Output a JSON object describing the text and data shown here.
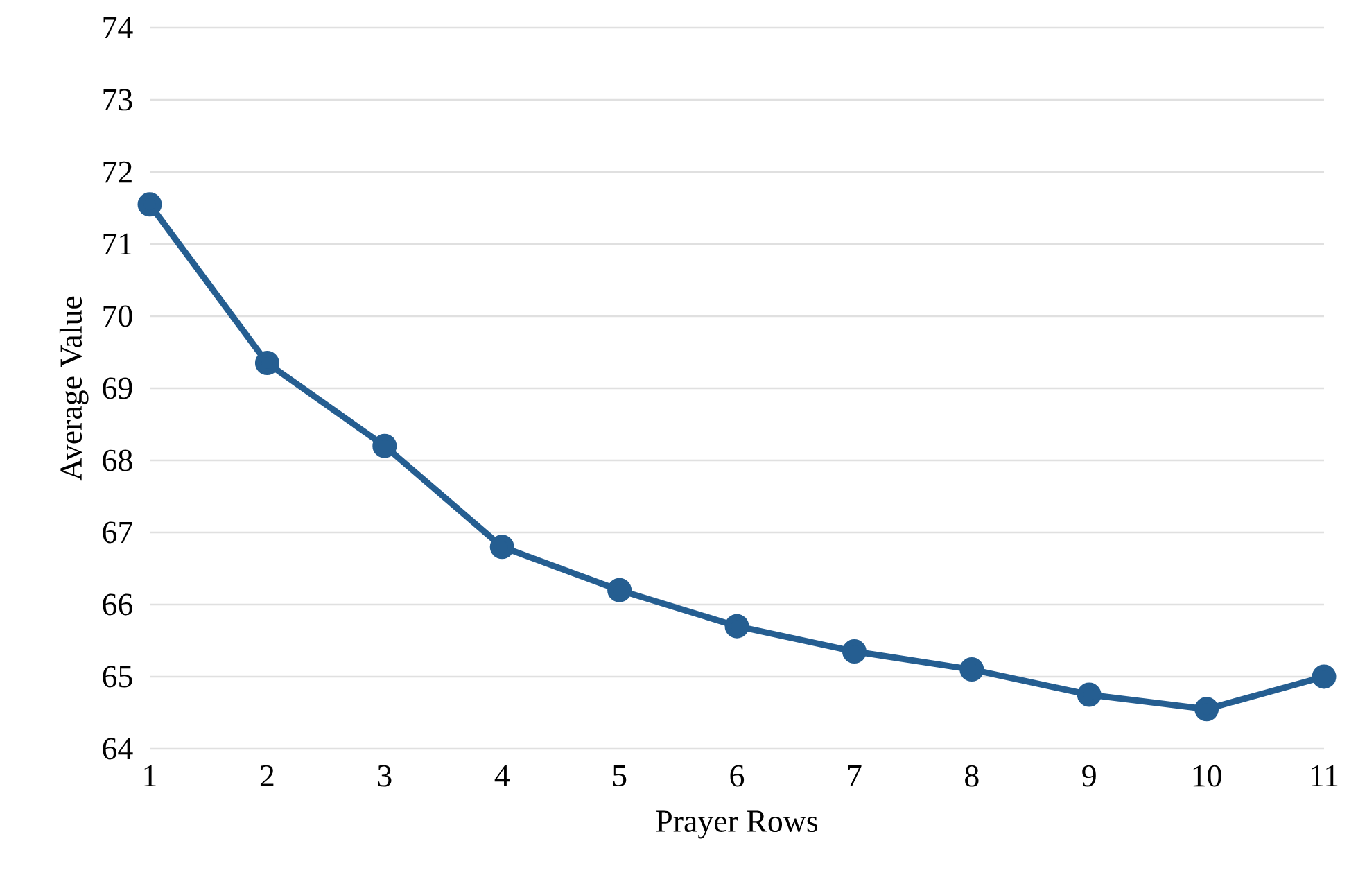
{
  "chart_data": {
    "type": "line",
    "xlabel": "Prayer Rows",
    "ylabel": "Average Value",
    "categories": [
      "1",
      "2",
      "3",
      "4",
      "5",
      "6",
      "7",
      "8",
      "9",
      "10",
      "11"
    ],
    "series": [
      {
        "color": "#255e91",
        "values": [
          71.55,
          69.35,
          68.2,
          66.8,
          66.2,
          65.7,
          65.35,
          65.1,
          64.75,
          64.55,
          65.0
        ]
      }
    ],
    "ylim": [
      64,
      74
    ],
    "yticks": [
      64,
      65,
      66,
      67,
      68,
      69,
      70,
      71,
      72,
      73,
      74
    ],
    "grid": "y",
    "marker": "circle",
    "line_style": "solid"
  }
}
